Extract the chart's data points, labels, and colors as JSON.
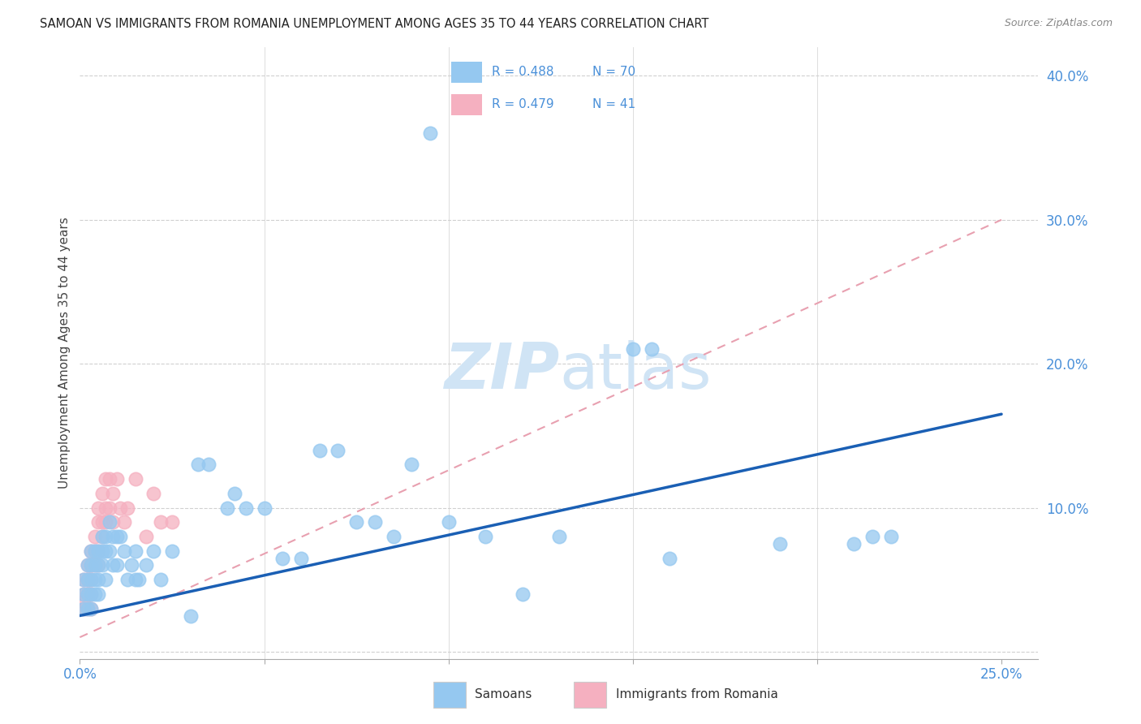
{
  "title": "SAMOAN VS IMMIGRANTS FROM ROMANIA UNEMPLOYMENT AMONG AGES 35 TO 44 YEARS CORRELATION CHART",
  "source": "Source: ZipAtlas.com",
  "ylabel": "Unemployment Among Ages 35 to 44 years",
  "xlim": [
    0.0,
    0.26
  ],
  "ylim": [
    -0.005,
    0.42
  ],
  "yticks": [
    0.0,
    0.1,
    0.2,
    0.3,
    0.4
  ],
  "ytick_labels": [
    "",
    "10.0%",
    "20.0%",
    "30.0%",
    "40.0%"
  ],
  "xticks": [
    0.0,
    0.05,
    0.1,
    0.15,
    0.2,
    0.25
  ],
  "xtick_labels": [
    "0.0%",
    "",
    "",
    "",
    "",
    "25.0%"
  ],
  "legend_r1": "R = 0.488",
  "legend_n1": "N = 70",
  "legend_r2": "R = 0.479",
  "legend_n2": "N = 41",
  "samoans_color": "#95c8f0",
  "romania_color": "#f5b0c0",
  "trendline_blue_color": "#1a5fb4",
  "trendline_pink_color": "#e8a0b0",
  "text_blue_color": "#4a90d9",
  "watermark_color": "#d0e4f5",
  "grid_color": "#d0d0d0",
  "samoans_label": "Samoans",
  "romania_label": "Immigrants from Romania",
  "blue_trend_x0": 0.0,
  "blue_trend_y0": 0.025,
  "blue_trend_x1": 0.25,
  "blue_trend_y1": 0.165,
  "pink_trend_x0": 0.0,
  "pink_trend_y0": 0.01,
  "pink_trend_x1": 0.25,
  "pink_trend_y1": 0.3,
  "samoans_x": [
    0.001,
    0.001,
    0.001,
    0.002,
    0.002,
    0.002,
    0.002,
    0.003,
    0.003,
    0.003,
    0.003,
    0.003,
    0.004,
    0.004,
    0.004,
    0.004,
    0.005,
    0.005,
    0.005,
    0.005,
    0.006,
    0.006,
    0.006,
    0.007,
    0.007,
    0.007,
    0.008,
    0.008,
    0.009,
    0.009,
    0.01,
    0.01,
    0.011,
    0.012,
    0.013,
    0.014,
    0.015,
    0.015,
    0.016,
    0.018,
    0.02,
    0.022,
    0.025,
    0.03,
    0.032,
    0.035,
    0.04,
    0.042,
    0.045,
    0.05,
    0.055,
    0.06,
    0.065,
    0.07,
    0.075,
    0.08,
    0.085,
    0.09,
    0.095,
    0.1,
    0.11,
    0.12,
    0.13,
    0.15,
    0.155,
    0.16,
    0.19,
    0.21,
    0.215,
    0.22
  ],
  "samoans_y": [
    0.04,
    0.03,
    0.05,
    0.04,
    0.05,
    0.03,
    0.06,
    0.05,
    0.04,
    0.06,
    0.03,
    0.07,
    0.05,
    0.04,
    0.06,
    0.07,
    0.06,
    0.04,
    0.07,
    0.05,
    0.07,
    0.06,
    0.08,
    0.07,
    0.05,
    0.08,
    0.07,
    0.09,
    0.06,
    0.08,
    0.08,
    0.06,
    0.08,
    0.07,
    0.05,
    0.06,
    0.05,
    0.07,
    0.05,
    0.06,
    0.07,
    0.05,
    0.07,
    0.025,
    0.13,
    0.13,
    0.1,
    0.11,
    0.1,
    0.1,
    0.065,
    0.065,
    0.14,
    0.14,
    0.09,
    0.09,
    0.08,
    0.13,
    0.36,
    0.09,
    0.08,
    0.04,
    0.08,
    0.21,
    0.21,
    0.065,
    0.075,
    0.075,
    0.08,
    0.08
  ],
  "romania_x": [
    0.001,
    0.001,
    0.001,
    0.001,
    0.002,
    0.002,
    0.002,
    0.002,
    0.002,
    0.003,
    0.003,
    0.003,
    0.003,
    0.003,
    0.003,
    0.004,
    0.004,
    0.004,
    0.005,
    0.005,
    0.005,
    0.005,
    0.006,
    0.006,
    0.006,
    0.007,
    0.007,
    0.007,
    0.008,
    0.008,
    0.009,
    0.009,
    0.01,
    0.011,
    0.012,
    0.013,
    0.015,
    0.018,
    0.02,
    0.022,
    0.025
  ],
  "romania_y": [
    0.035,
    0.04,
    0.03,
    0.05,
    0.04,
    0.05,
    0.03,
    0.06,
    0.05,
    0.06,
    0.05,
    0.04,
    0.07,
    0.06,
    0.03,
    0.07,
    0.06,
    0.08,
    0.07,
    0.09,
    0.06,
    0.1,
    0.08,
    0.09,
    0.11,
    0.09,
    0.1,
    0.12,
    0.1,
    0.12,
    0.09,
    0.11,
    0.12,
    0.1,
    0.09,
    0.1,
    0.12,
    0.08,
    0.11,
    0.09,
    0.09
  ]
}
